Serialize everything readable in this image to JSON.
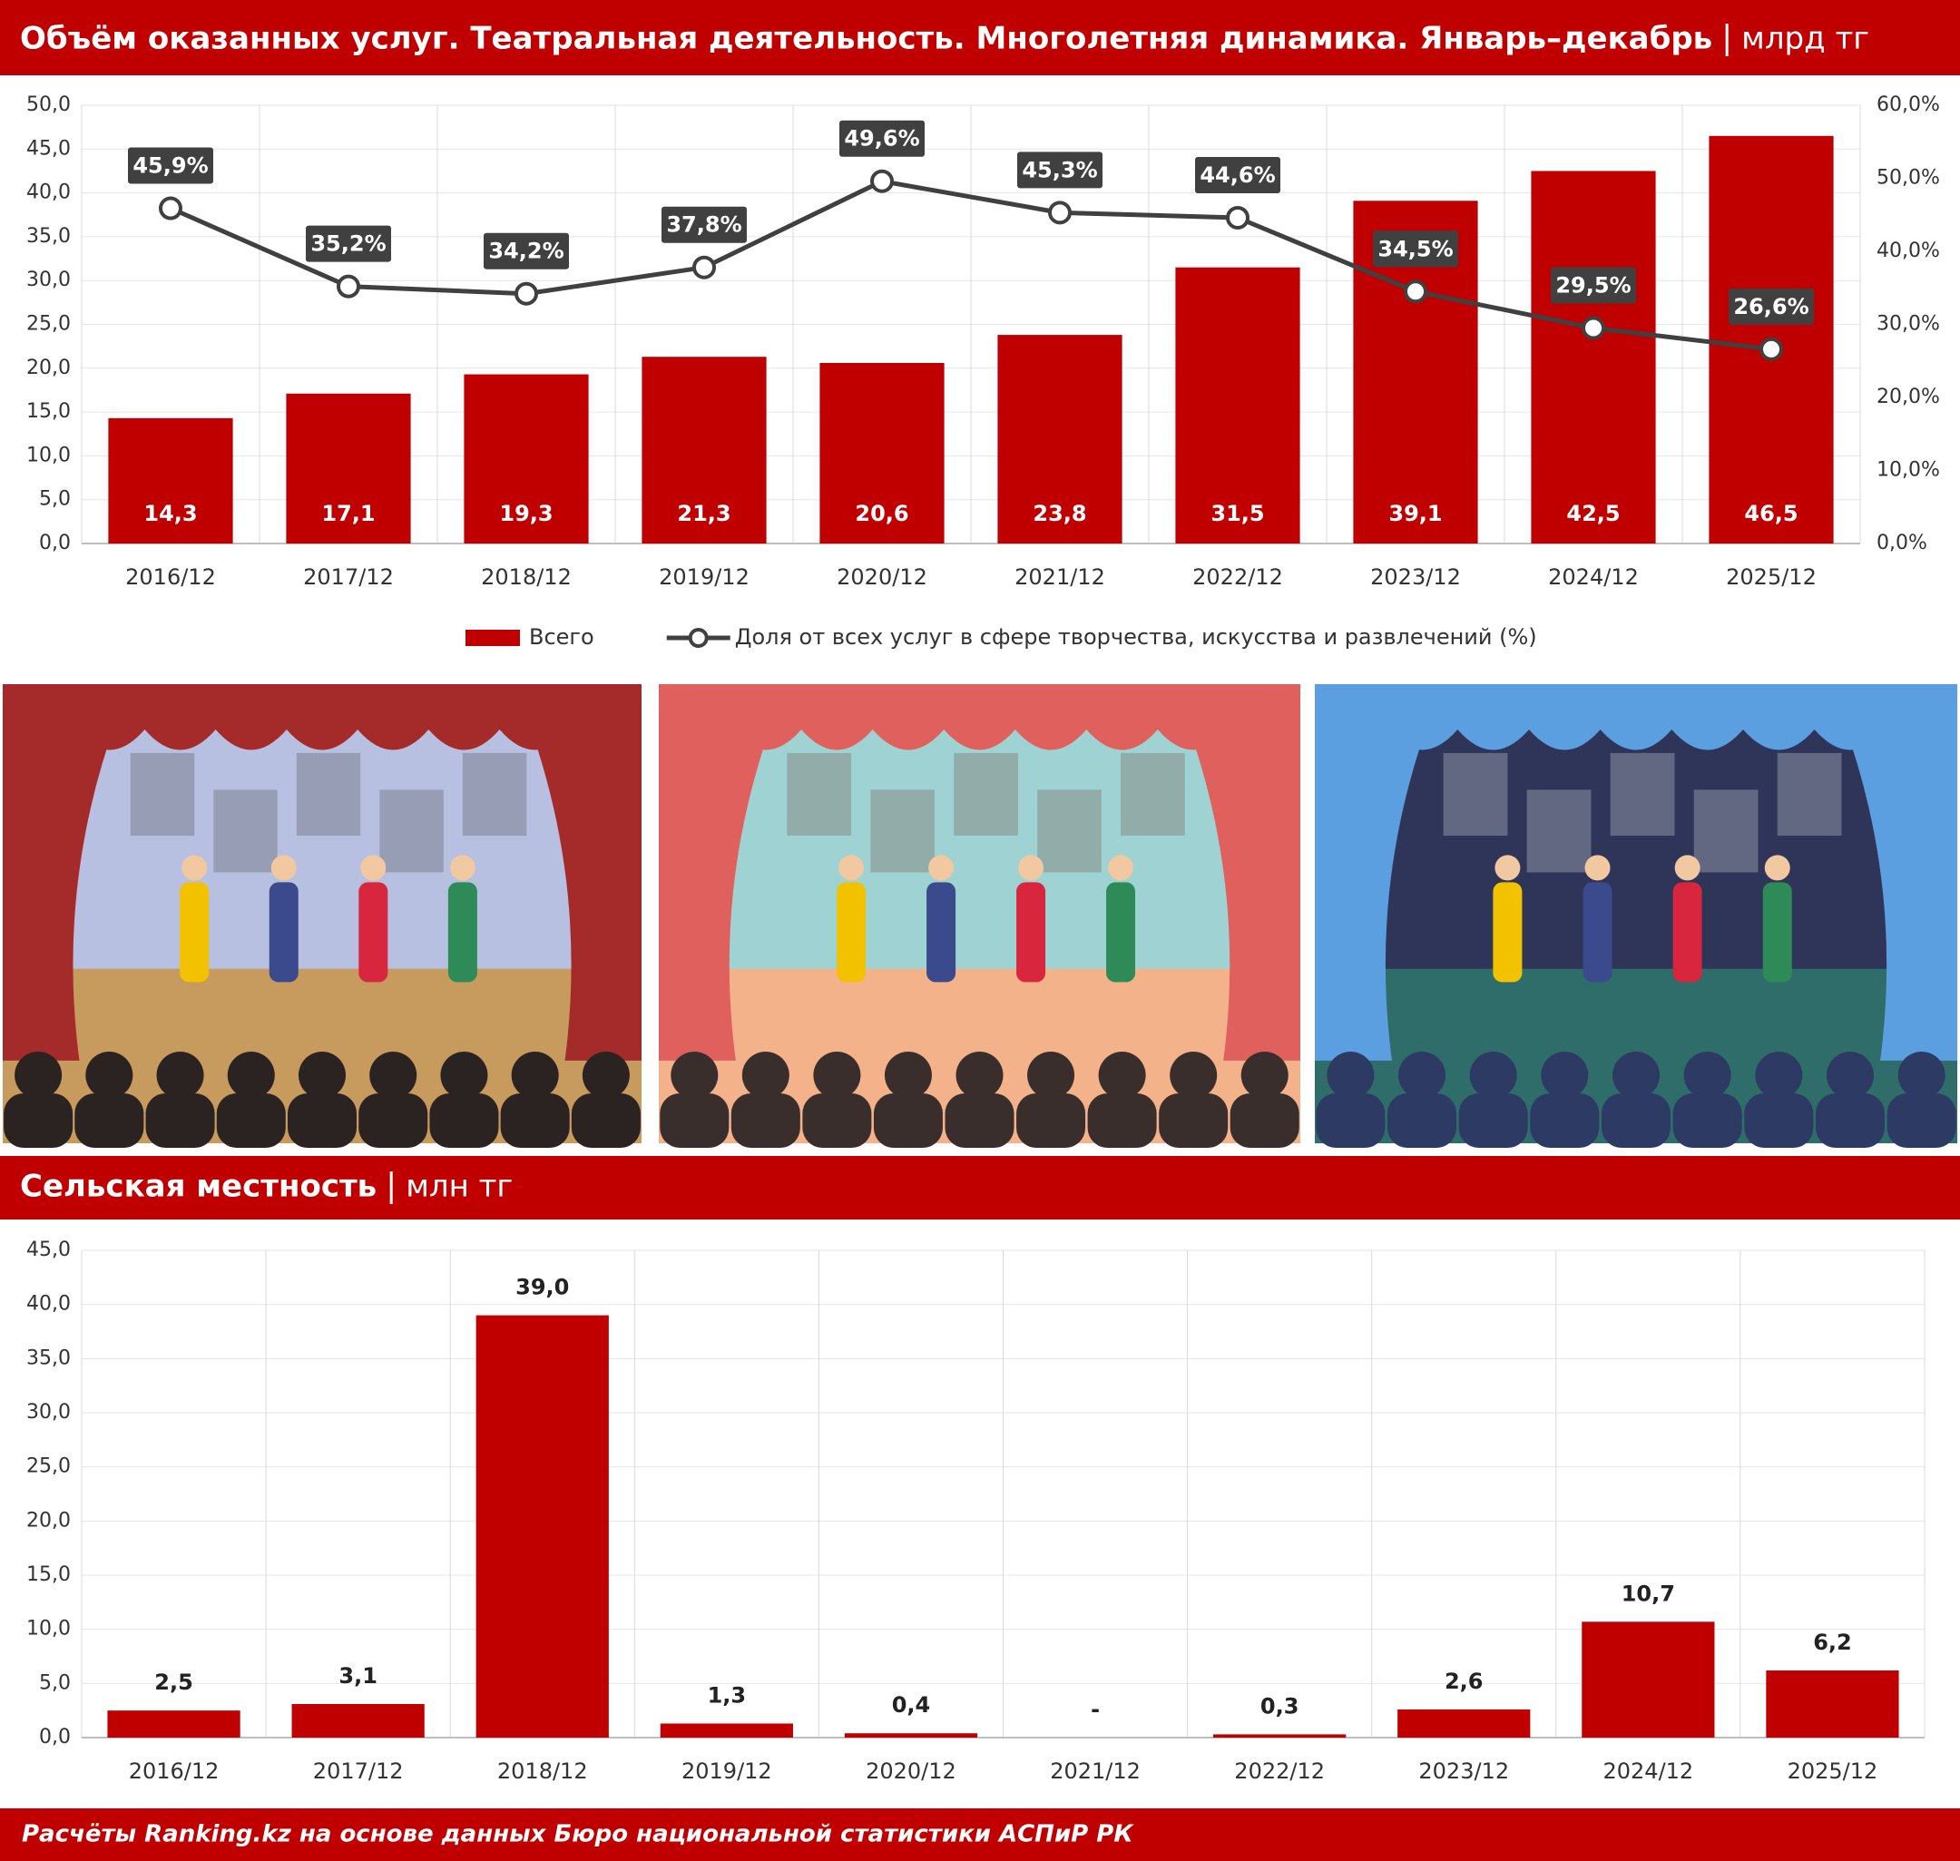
{
  "chart_data": [
    {
      "type": "bar",
      "title": "Объём оказанных услуг. Театральная деятельность. Многолетняя динамика. Январь–декабрь",
      "unit": "млрд тг",
      "categories": [
        "2016/12",
        "2017/12",
        "2018/12",
        "2019/12",
        "2020/12",
        "2021/12",
        "2022/12",
        "2023/12",
        "2024/12",
        "2025/12"
      ],
      "series": [
        {
          "name": "Всего",
          "type": "bar",
          "color": "#c00000",
          "values": [
            14.3,
            17.1,
            19.3,
            21.3,
            20.6,
            23.8,
            31.5,
            39.1,
            42.5,
            46.5
          ],
          "value_labels": [
            "14,3",
            "17,1",
            "19,3",
            "21,3",
            "20,6",
            "23,8",
            "31,5",
            "39,1",
            "42,5",
            "46,5"
          ]
        },
        {
          "name": "Доля от всех услуг в сфере творчества, искусства и развлечений (%)",
          "type": "line",
          "axis": "y2",
          "color": "#404040",
          "values": [
            45.9,
            35.2,
            34.2,
            37.8,
            49.6,
            45.3,
            44.6,
            34.5,
            29.5,
            26.6
          ],
          "value_labels": [
            "45,9%",
            "35,2%",
            "34,2%",
            "37,8%",
            "49,6%",
            "45,3%",
            "44,6%",
            "34,5%",
            "29,5%",
            "26,6%"
          ]
        }
      ],
      "ylim": [
        0,
        50
      ],
      "yticks": [
        {
          "value": 0,
          "label": "0,0"
        },
        {
          "value": 5,
          "label": "5,0"
        },
        {
          "value": 10,
          "label": "10,0"
        },
        {
          "value": 15,
          "label": "15,0"
        },
        {
          "value": 20,
          "label": "20,0"
        },
        {
          "value": 25,
          "label": "25,0"
        },
        {
          "value": 30,
          "label": "30,0"
        },
        {
          "value": 35,
          "label": "35,0"
        },
        {
          "value": 40,
          "label": "40,0"
        },
        {
          "value": 45,
          "label": "45,0"
        },
        {
          "value": 50,
          "label": "50,0"
        }
      ],
      "y2lim": [
        0,
        60
      ],
      "y2ticks": [
        {
          "value": 0,
          "label": "0,0%"
        },
        {
          "value": 10,
          "label": "10,0%"
        },
        {
          "value": 20,
          "label": "20,0%"
        },
        {
          "value": 30,
          "label": "30,0%"
        },
        {
          "value": 40,
          "label": "40,0%"
        },
        {
          "value": 50,
          "label": "50,0%"
        },
        {
          "value": 60,
          "label": "60,0%"
        }
      ],
      "grid": true,
      "legend": "bottom"
    },
    {
      "type": "bar",
      "title": "Сельская местность",
      "unit": "млн тг",
      "categories": [
        "2016/12",
        "2017/12",
        "2018/12",
        "2019/12",
        "2020/12",
        "2021/12",
        "2022/12",
        "2023/12",
        "2024/12",
        "2025/12"
      ],
      "values": [
        2.5,
        3.1,
        39.0,
        1.3,
        0.4,
        null,
        0.3,
        2.6,
        10.7,
        6.2
      ],
      "value_labels": [
        "2,5",
        "3,1",
        "39,0",
        "1,3",
        "0,4",
        "-",
        "0,3",
        "2,6",
        "10,7",
        "6,2"
      ],
      "color": "#c00000",
      "ylim": [
        0,
        45
      ],
      "yticks": [
        {
          "value": 0,
          "label": "0,0"
        },
        {
          "value": 5,
          "label": "5,0"
        },
        {
          "value": 10,
          "label": "10,0"
        },
        {
          "value": 15,
          "label": "15,0"
        },
        {
          "value": 20,
          "label": "20,0"
        },
        {
          "value": 25,
          "label": "25,0"
        },
        {
          "value": 30,
          "label": "30,0"
        },
        {
          "value": 35,
          "label": "35,0"
        },
        {
          "value": 40,
          "label": "40,0"
        },
        {
          "value": 45,
          "label": "45,0"
        }
      ],
      "grid": true
    }
  ],
  "footer": {
    "source": "Расчёты Ranking.kz на основе данных Бюро национальной статистики АСПиР РК"
  }
}
